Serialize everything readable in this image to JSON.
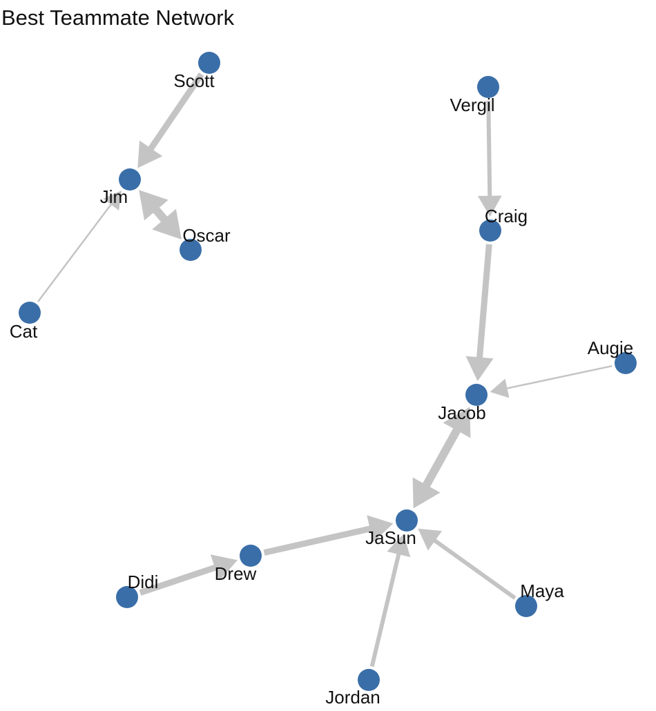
{
  "title": "Best Teammate Network",
  "colors": {
    "node": "#3a6ea8",
    "edge": "#c4c4c4",
    "text": "#111111"
  },
  "nodes": [
    {
      "id": "scott",
      "label": "Scott"
    },
    {
      "id": "jim",
      "label": "Jim"
    },
    {
      "id": "oscar",
      "label": "Oscar"
    },
    {
      "id": "cat",
      "label": "Cat"
    },
    {
      "id": "vergil",
      "label": "Vergil"
    },
    {
      "id": "craig",
      "label": "Craig"
    },
    {
      "id": "augie",
      "label": "Augie"
    },
    {
      "id": "jacob",
      "label": "Jacob"
    },
    {
      "id": "jasun",
      "label": "JaSun"
    },
    {
      "id": "didi",
      "label": "Didi"
    },
    {
      "id": "drew",
      "label": "Drew"
    },
    {
      "id": "maya",
      "label": "Maya"
    },
    {
      "id": "jordan",
      "label": "Jordan"
    }
  ],
  "edges": [
    {
      "from": "scott",
      "to": "jim",
      "weight": 3,
      "bidirectional": false
    },
    {
      "from": "oscar",
      "to": "jim",
      "weight": 4,
      "bidirectional": true
    },
    {
      "from": "cat",
      "to": "jim",
      "weight": 1,
      "bidirectional": false
    },
    {
      "from": "vergil",
      "to": "craig",
      "weight": 2,
      "bidirectional": false
    },
    {
      "from": "craig",
      "to": "jacob",
      "weight": 3,
      "bidirectional": false
    },
    {
      "from": "augie",
      "to": "jacob",
      "weight": 1,
      "bidirectional": false
    },
    {
      "from": "jasun",
      "to": "jacob",
      "weight": 4,
      "bidirectional": true
    },
    {
      "from": "drew",
      "to": "jasun",
      "weight": 3,
      "bidirectional": false
    },
    {
      "from": "didi",
      "to": "drew",
      "weight": 3,
      "bidirectional": false
    },
    {
      "from": "jordan",
      "to": "jasun",
      "weight": 2,
      "bidirectional": false
    },
    {
      "from": "maya",
      "to": "jasun",
      "weight": 2,
      "bidirectional": false
    }
  ]
}
